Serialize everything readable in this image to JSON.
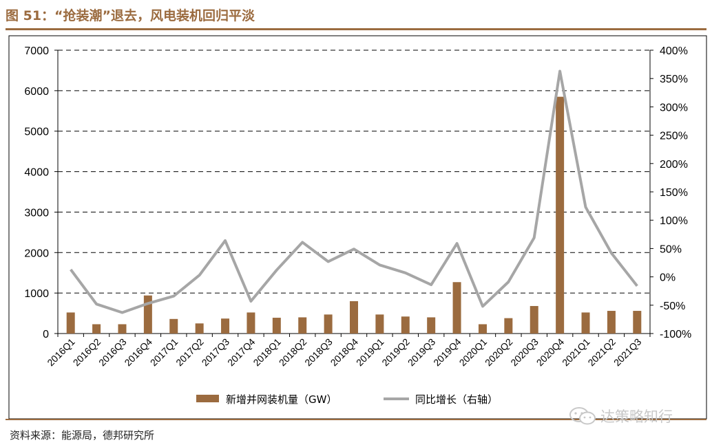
{
  "title": "图 51：“抢装潮”退去，风电装机回归平淡",
  "source": "资料来源：能源局，德邦研究所",
  "watermark": "达策略知行",
  "colors": {
    "accent": "#9b6b3f",
    "bar": "#9b6b3f",
    "line": "#a6a6a6"
  },
  "chart_data": {
    "type": "bar",
    "categories": [
      "2016Q1",
      "2016Q2",
      "2016Q3",
      "2016Q4",
      "2017Q1",
      "2017Q2",
      "2017Q3",
      "2017Q4",
      "2018Q1",
      "2018Q2",
      "2018Q3",
      "2018Q4",
      "2019Q1",
      "2019Q2",
      "2019Q3",
      "2019Q4",
      "2020Q1",
      "2020Q2",
      "2020Q3",
      "2020Q4",
      "2021Q1",
      "2021Q2",
      "2021Q3"
    ],
    "series": [
      {
        "name": "新增并网装机量（GW）",
        "type": "bar",
        "axis": "left",
        "values": [
          520,
          230,
          230,
          940,
          360,
          250,
          370,
          520,
          390,
          400,
          470,
          800,
          470,
          420,
          400,
          1270,
          230,
          380,
          680,
          5850,
          520,
          560,
          560
        ]
      },
      {
        "name": "同比增长（右轴）",
        "type": "line",
        "axis": "right",
        "values": [
          13,
          -48,
          -63,
          -47,
          -34,
          3,
          64,
          -43,
          12,
          61,
          27,
          49,
          21,
          7,
          -14,
          59,
          -52,
          -9,
          69,
          363,
          123,
          42,
          -16
        ]
      }
    ],
    "y_left": {
      "ylim": [
        0,
        7000
      ],
      "ticks": [
        0,
        1000,
        2000,
        3000,
        4000,
        5000,
        6000,
        7000
      ]
    },
    "y_right": {
      "ylim": [
        -100,
        400
      ],
      "ticks": [
        -100,
        -50,
        0,
        50,
        100,
        150,
        200,
        250,
        300,
        350,
        400
      ],
      "tick_labels": [
        "-100%",
        "-50%",
        "0%",
        "50%",
        "100%",
        "150%",
        "200%",
        "250%",
        "300%",
        "350%",
        "400%"
      ]
    },
    "grid": "horizontal-dashed",
    "legend_position": "bottom"
  }
}
